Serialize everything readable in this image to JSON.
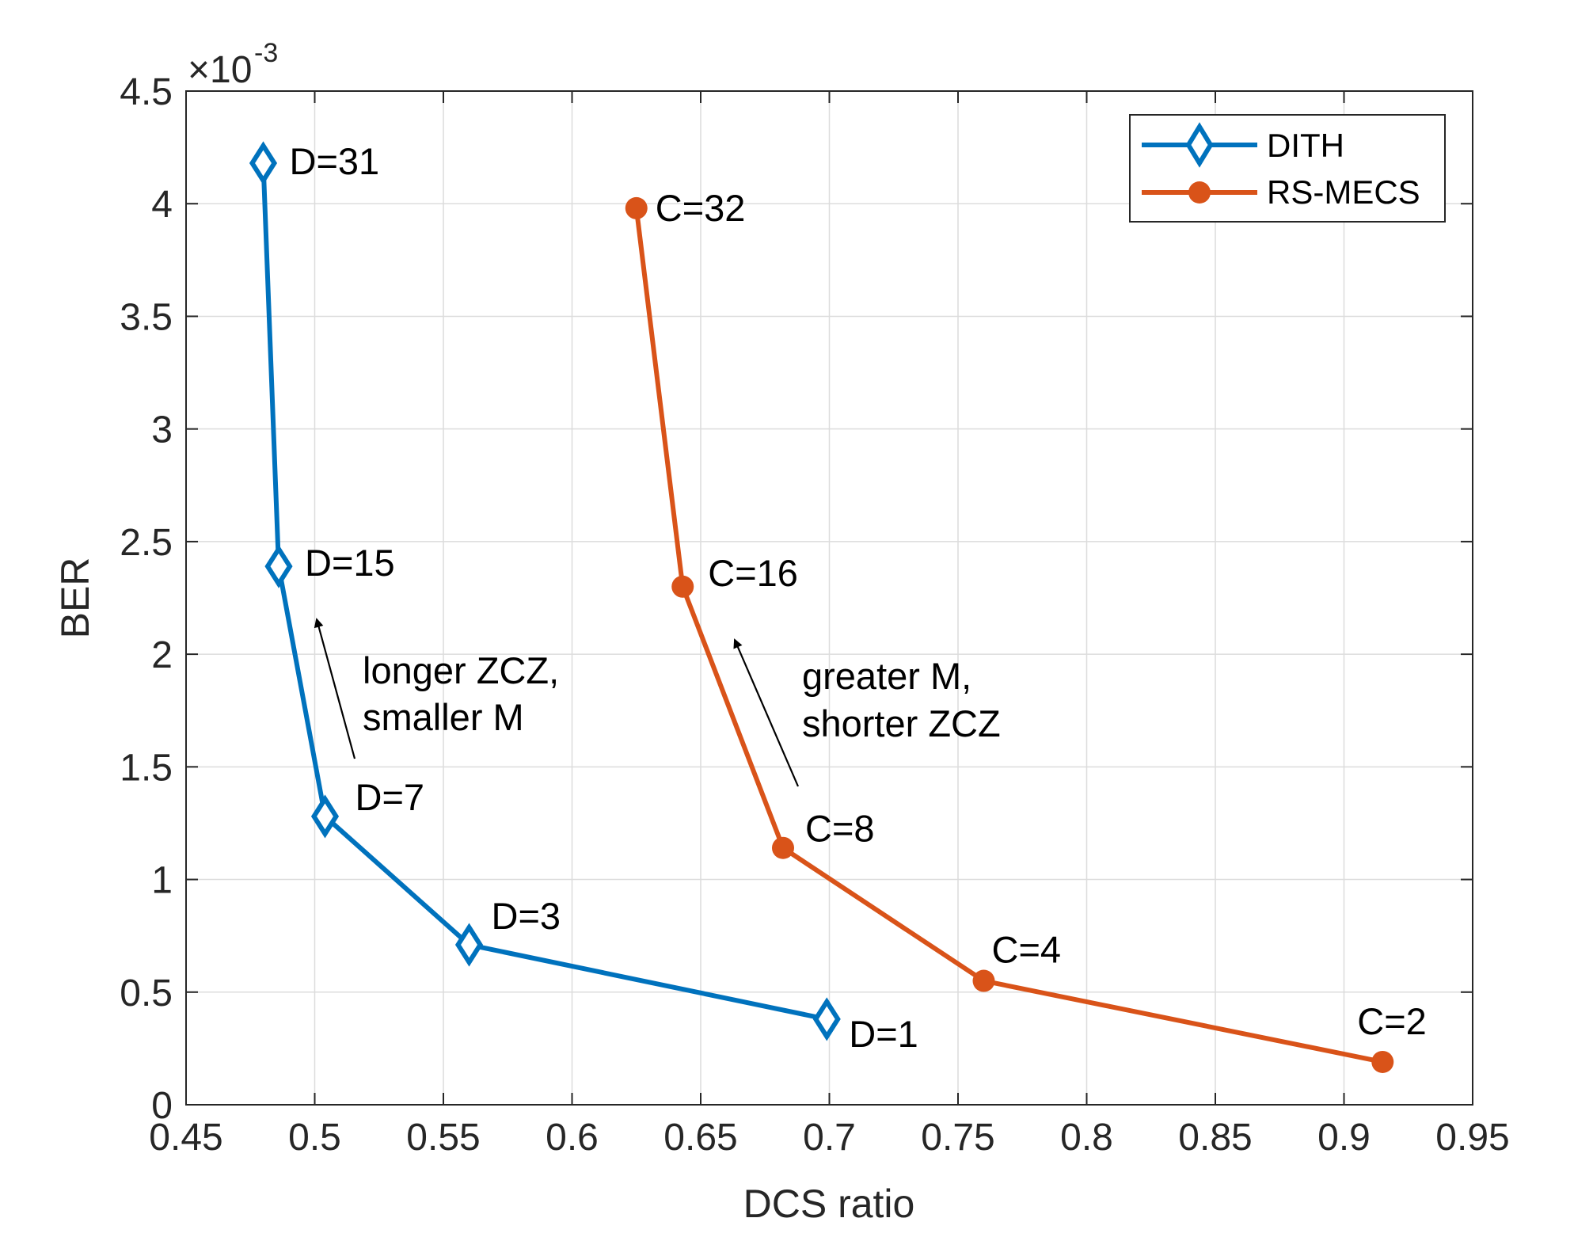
{
  "chart_data": {
    "type": "line",
    "xlabel": "DCS ratio",
    "ylabel": "BER",
    "xlim": [
      0.45,
      0.95
    ],
    "ylim": [
      0,
      4.5
    ],
    "y_multiplier": "×10",
    "y_multiplier_exp": "-3",
    "xticks": [
      "0.45",
      "0.5",
      "0.55",
      "0.6",
      "0.65",
      "0.7",
      "0.75",
      "0.8",
      "0.85",
      "0.9",
      "0.95"
    ],
    "yticks": [
      "0",
      "0.5",
      "1",
      "1.5",
      "2",
      "2.5",
      "3",
      "3.5",
      "4",
      "4.5"
    ],
    "grid": true,
    "legend_position": "top-right",
    "series": [
      {
        "name": "DITH",
        "color": "#0072BD",
        "marker": "diamond",
        "x": [
          0.48,
          0.486,
          0.504,
          0.56,
          0.699
        ],
        "y": [
          4.18,
          2.39,
          1.28,
          0.71,
          0.38
        ],
        "point_labels": [
          "D=31",
          "D=15",
          "D=7",
          "D=3",
          "D=1"
        ]
      },
      {
        "name": "RS-MECS",
        "color": "#D95319",
        "marker": "circle",
        "x": [
          0.625,
          0.643,
          0.682,
          0.76,
          0.915
        ],
        "y": [
          3.98,
          2.3,
          1.14,
          0.55,
          0.19
        ],
        "point_labels": [
          "C=32",
          "C=16",
          "C=8",
          "C=4",
          "C=2"
        ]
      }
    ],
    "annotations": [
      {
        "lines": [
          "longer ZCZ,",
          "smaller M"
        ]
      },
      {
        "lines": [
          "greater M,",
          "shorter ZCZ"
        ]
      }
    ]
  }
}
